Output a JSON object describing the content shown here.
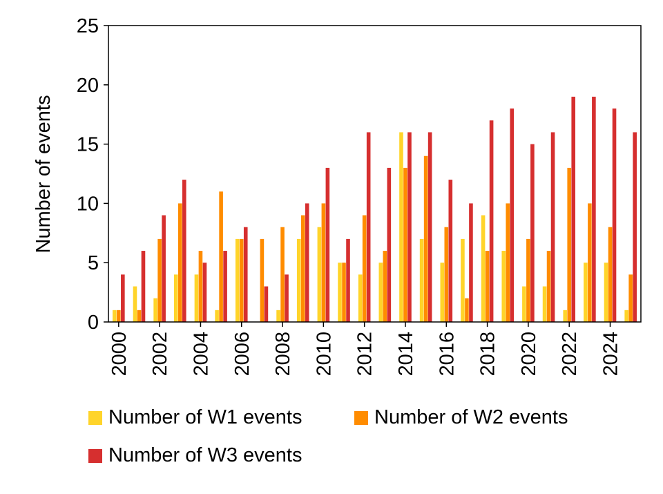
{
  "chart_data": {
    "type": "bar",
    "categories": [
      "2000",
      "2001",
      "2002",
      "2003",
      "2004",
      "2005",
      "2006",
      "2007",
      "2008",
      "2009",
      "2010",
      "2011",
      "2012",
      "2013",
      "2014",
      "2015",
      "2016",
      "2017",
      "2018",
      "2019",
      "2020",
      "2021",
      "2022",
      "2023",
      "2024",
      "2025"
    ],
    "tick_labels": [
      "2000",
      "2002",
      "2004",
      "2006",
      "2008",
      "2010",
      "2012",
      "2014",
      "2016",
      "2018",
      "2020",
      "2022",
      "2024"
    ],
    "series": [
      {
        "name": "Number of W1 events",
        "color": "#FFD42A",
        "values": [
          1,
          3,
          2,
          4,
          4,
          1,
          7,
          0,
          1,
          7,
          8,
          5,
          4,
          5,
          16,
          7,
          5,
          7,
          9,
          6,
          3,
          3,
          1,
          5,
          5,
          1
        ]
      },
      {
        "name": "Number of W2 events",
        "color": "#FF8C00",
        "values": [
          1,
          1,
          7,
          10,
          6,
          11,
          7,
          7,
          8,
          9,
          10,
          5,
          9,
          6,
          13,
          14,
          8,
          2,
          6,
          10,
          7,
          6,
          13,
          10,
          8,
          4
        ]
      },
      {
        "name": "Number of W3 events",
        "color": "#D62F2F",
        "values": [
          4,
          6,
          9,
          12,
          5,
          6,
          8,
          3,
          4,
          10,
          13,
          7,
          16,
          13,
          16,
          16,
          12,
          10,
          17,
          18,
          15,
          16,
          19,
          19,
          18,
          16
        ]
      }
    ],
    "title": "",
    "xlabel": "",
    "ylabel": "Number of events",
    "ylim": [
      0,
      25
    ],
    "yticks": [
      0,
      5,
      10,
      15,
      20,
      25
    ],
    "grid": false,
    "legend_position": "bottom"
  }
}
